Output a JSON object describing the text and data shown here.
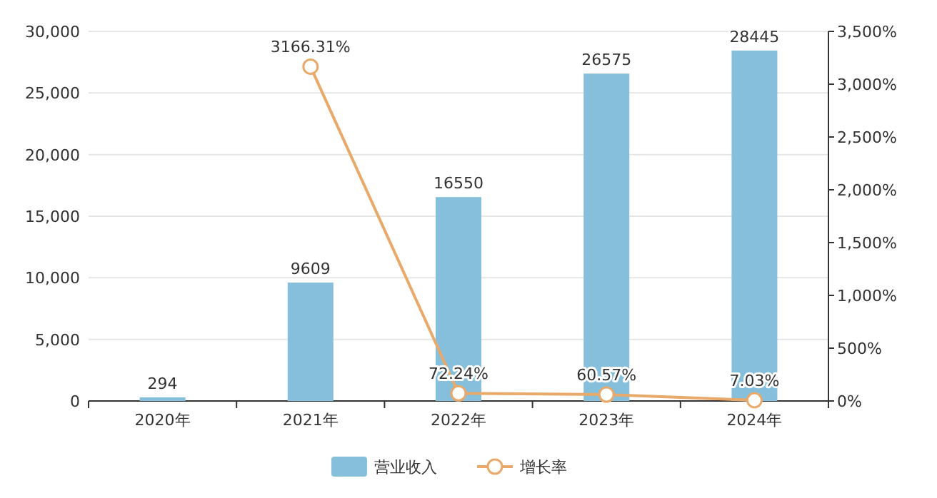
{
  "chart_data": {
    "type": "bar",
    "categories": [
      "2020年",
      "2021年",
      "2022年",
      "2023年",
      "2024年"
    ],
    "series": [
      {
        "name": "营业收入",
        "color": "#86bfdc",
        "values": [
          294,
          9609,
          16550,
          26575,
          28445
        ],
        "value_labels": [
          "294",
          "9609",
          "16550",
          "26575",
          "28445"
        ]
      },
      {
        "name": "增长率",
        "type": "line",
        "axis": "y2",
        "color": "#e8a96b",
        "values": [
          null,
          3166.31,
          72.24,
          60.57,
          7.03
        ],
        "value_labels": [
          null,
          "3166.31%",
          "72.24%",
          "60.57%",
          "7.03%"
        ]
      }
    ],
    "ylim": [
      0,
      30000
    ],
    "yticks": [
      0,
      {
        "value": 5000,
        "label": "5,000"
      },
      {
        "value": 10000,
        "label": "10,000"
      },
      {
        "value": 15000,
        "label": "15,000"
      },
      {
        "value": 20000,
        "label": "20,000"
      },
      {
        "value": 25000,
        "label": "25,000"
      },
      {
        "value": 30000,
        "label": "30,000"
      }
    ],
    "y2lim": [
      0,
      3500
    ],
    "y2ticks": [
      {
        "value": 0,
        "label": "0%"
      },
      {
        "value": 500,
        "label": "500%"
      },
      {
        "value": 1000,
        "label": "1,000%"
      },
      {
        "value": 1500,
        "label": "1,500%"
      },
      {
        "value": 2000,
        "label": "2,000%"
      },
      {
        "value": 2500,
        "label": "2,500%"
      },
      {
        "value": 3000,
        "label": "3,000%"
      },
      {
        "value": 3500,
        "label": "3,500%"
      }
    ],
    "grid": "y",
    "legend": "bottom",
    "marker": "circle"
  }
}
